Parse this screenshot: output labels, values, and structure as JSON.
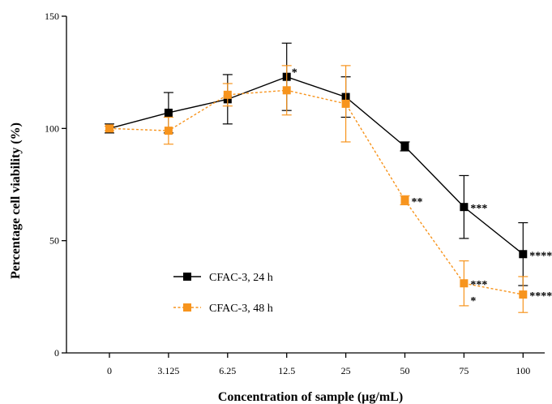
{
  "chart_data": {
    "type": "line",
    "xlabel": "Concentration of sample (µg/mL)",
    "ylabel": "Percentage cell viability (%)",
    "categories": [
      "0",
      "3.125",
      "6.25",
      "12.5",
      "25",
      "50",
      "75",
      "100"
    ],
    "ylim": [
      0,
      150
    ],
    "yticks": [
      "0",
      "50",
      "100",
      "150"
    ],
    "grid": false,
    "legend_position": "bottom-left",
    "series": [
      {
        "name": "CFAC-3, 24 h",
        "color": "#000000",
        "line_style": "solid",
        "values": [
          100,
          107,
          113,
          123,
          114,
          92,
          65,
          44
        ],
        "error": [
          2,
          9,
          11,
          15,
          9,
          2,
          14,
          14
        ],
        "significance": [
          "",
          "",
          "",
          "*",
          "",
          "",
          "***",
          "****"
        ]
      },
      {
        "name": "CFAC-3, 48 h",
        "color": "#F7941D",
        "line_style": "dashed",
        "values": [
          100,
          99,
          115,
          117,
          111,
          68,
          31,
          26
        ],
        "error": [
          1,
          6,
          5,
          11,
          17,
          2,
          10,
          8
        ],
        "significance": [
          "",
          "",
          "",
          "",
          "",
          "**",
          "***\n*",
          "****"
        ]
      }
    ]
  }
}
